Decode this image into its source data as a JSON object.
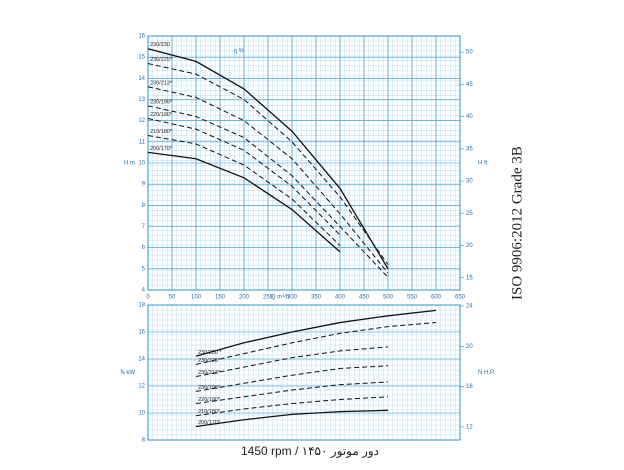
{
  "chart_data": [
    {
      "type": "line",
      "x_label": "Q m³/h",
      "y_label": "H m",
      "y2_label": "H ft",
      "annotation": "η %",
      "x": [
        0,
        100,
        200,
        300,
        400,
        500
      ],
      "xlim": [
        0,
        650
      ],
      "xticks": [
        0,
        50,
        100,
        150,
        200,
        250,
        300,
        350,
        400,
        450,
        500,
        550,
        600,
        650
      ],
      "ylim": [
        4,
        16
      ],
      "yticks": [
        4,
        5,
        6,
        7,
        8,
        9,
        10,
        11,
        12,
        13,
        14,
        15,
        16
      ],
      "y2lim": [
        13.1,
        52.5
      ],
      "y2ticks": [
        15,
        20,
        25,
        30,
        35,
        40,
        45,
        50
      ],
      "grid": true,
      "series": [
        {
          "name": "230/230",
          "color": "#111111",
          "dash": false,
          "values": [
            15.4,
            14.8,
            13.5,
            11.5,
            8.8,
            5.0
          ]
        },
        {
          "name": "230/225*",
          "color": "#111111",
          "dash": true,
          "values": [
            14.7,
            14.2,
            13.0,
            11.0,
            8.4,
            5.2
          ]
        },
        {
          "name": "230/213*",
          "color": "#111111",
          "dash": true,
          "values": [
            13.6,
            13.1,
            12.0,
            10.2,
            7.6,
            4.8
          ]
        },
        {
          "name": "230/196*",
          "color": "#111111",
          "dash": true,
          "values": [
            12.7,
            12.2,
            11.2,
            9.4,
            7.0,
            4.6
          ]
        },
        {
          "name": "220/190*",
          "color": "#111111",
          "dash": true,
          "values": [
            12.1,
            11.6,
            10.6,
            8.9,
            6.6,
            null
          ]
        },
        {
          "name": "210/180*",
          "color": "#111111",
          "dash": true,
          "values": [
            11.3,
            10.9,
            9.9,
            8.3,
            6.1,
            null
          ]
        },
        {
          "name": "200/170*",
          "color": "#111111",
          "dash": false,
          "values": [
            10.5,
            10.2,
            9.3,
            7.8,
            5.8,
            null
          ]
        }
      ]
    },
    {
      "type": "line",
      "y_label": "N kW",
      "y2_label": "N H.P.",
      "x": [
        100,
        200,
        300,
        400,
        500,
        600
      ],
      "xlim": [
        0,
        650
      ],
      "ylim": [
        8,
        18
      ],
      "yticks": [
        8,
        10,
        12,
        14,
        16,
        18
      ],
      "y2lim": [
        10.7,
        24.1
      ],
      "y2ticks": [
        12,
        16,
        20,
        24
      ],
      "grid": true,
      "series": [
        {
          "name": "230/230 *",
          "color": "#111111",
          "dash": false,
          "values": [
            14.2,
            15.2,
            16.0,
            16.7,
            17.2,
            17.6
          ]
        },
        {
          "name": "230/225*",
          "color": "#111111",
          "dash": true,
          "values": [
            13.6,
            14.4,
            15.2,
            15.9,
            16.4,
            16.7
          ]
        },
        {
          "name": "230/213*",
          "color": "#111111",
          "dash": true,
          "values": [
            12.7,
            13.4,
            14.1,
            14.6,
            14.9,
            null
          ]
        },
        {
          "name": "230/196*",
          "color": "#111111",
          "dash": true,
          "values": [
            11.6,
            12.2,
            12.8,
            13.3,
            13.5,
            null
          ]
        },
        {
          "name": "220/190*",
          "color": "#111111",
          "dash": true,
          "values": [
            10.7,
            11.2,
            11.7,
            12.1,
            12.3,
            null
          ]
        },
        {
          "name": "210/180*",
          "color": "#111111",
          "dash": true,
          "values": [
            9.8,
            10.3,
            10.7,
            11.0,
            11.2,
            null
          ]
        },
        {
          "name": "200/170*",
          "color": "#111111",
          "dash": false,
          "values": [
            9.0,
            9.5,
            9.9,
            10.1,
            10.2,
            null
          ]
        }
      ]
    }
  ],
  "footer": "1450 rpm / ۱۴۵۰ دور موتور",
  "standard": "ISO 9906:2012 Grade 3B"
}
